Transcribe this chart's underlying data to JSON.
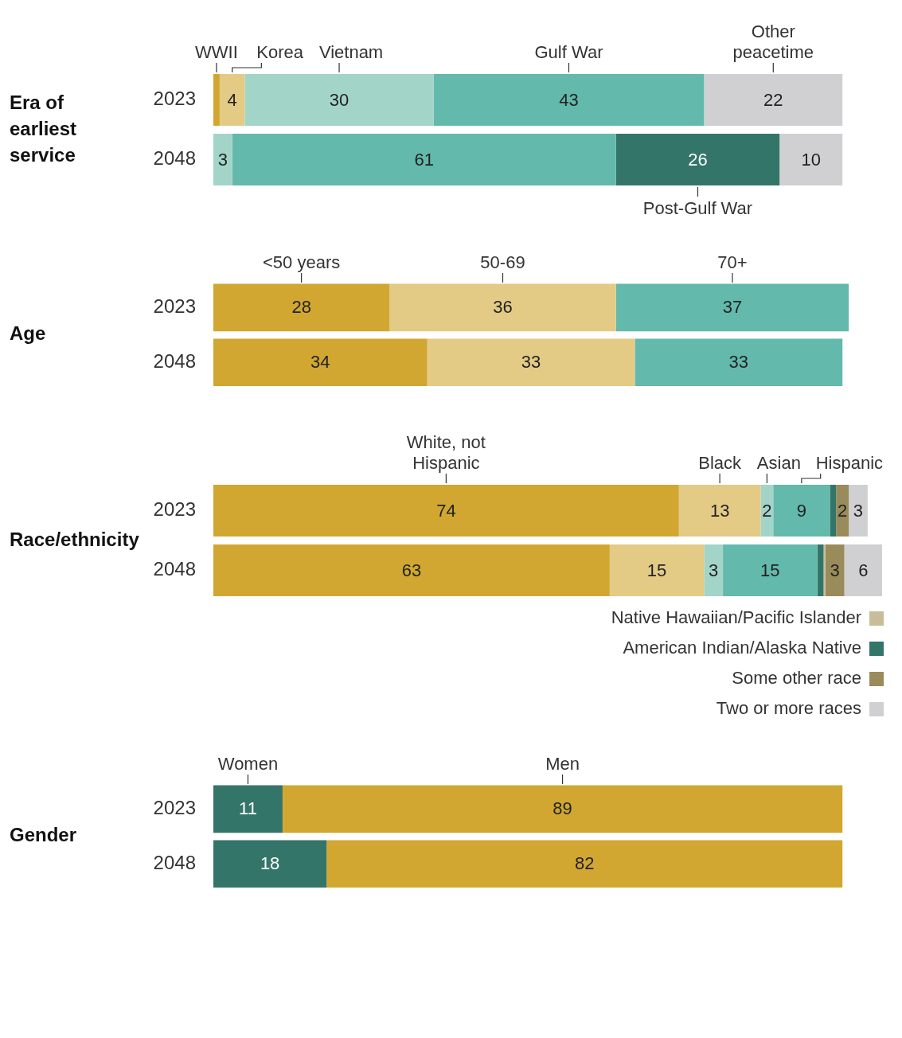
{
  "chart_data": [
    {
      "type": "bar",
      "title": "Era of earliest service",
      "orientation": "horizontal",
      "stacked": true,
      "categories": [
        "2023",
        "2048"
      ],
      "series": [
        {
          "name": "WWII",
          "color": "#d1a732",
          "values": [
            1,
            0
          ],
          "value_labels": [
            null,
            null
          ]
        },
        {
          "name": "Korea",
          "color": "#e3ca85",
          "values": [
            4,
            0
          ],
          "value_labels": [
            "4",
            null
          ]
        },
        {
          "name": "Vietnam",
          "color": "#a3d4c8",
          "values": [
            30,
            3
          ],
          "value_labels": [
            "30",
            "3"
          ]
        },
        {
          "name": "Gulf War",
          "color": "#63b9ab",
          "values": [
            43,
            61
          ],
          "value_labels": [
            "43",
            "61"
          ]
        },
        {
          "name": "Post-Gulf War",
          "color": "#347569",
          "values": [
            0,
            26
          ],
          "value_labels": [
            null,
            "26"
          ]
        },
        {
          "name": "Other peacetime",
          "color": "#d0d0d2",
          "values": [
            22,
            10
          ],
          "value_labels": [
            "22",
            "10"
          ]
        }
      ]
    },
    {
      "type": "bar",
      "title": "Age",
      "orientation": "horizontal",
      "stacked": true,
      "categories": [
        "2023",
        "2048"
      ],
      "series": [
        {
          "name": "<50 years",
          "color": "#d1a732",
          "values": [
            28,
            34
          ],
          "value_labels": [
            "28",
            "34"
          ]
        },
        {
          "name": "50-69",
          "color": "#e3ca85",
          "values": [
            36,
            33
          ],
          "value_labels": [
            "36",
            "33"
          ]
        },
        {
          "name": "70+",
          "color": "#63b9ab",
          "values": [
            37,
            33
          ],
          "value_labels": [
            "37",
            "33"
          ]
        }
      ]
    },
    {
      "type": "bar",
      "title": "Race/ethnicity",
      "orientation": "horizontal",
      "stacked": true,
      "legend": "bottom right",
      "categories": [
        "2023",
        "2048"
      ],
      "series": [
        {
          "name": "White, not Hispanic",
          "color": "#d1a732",
          "values": [
            74,
            63
          ],
          "value_labels": [
            "74",
            "63"
          ]
        },
        {
          "name": "Black",
          "color": "#e3ca85",
          "values": [
            13,
            15
          ],
          "value_labels": [
            "13",
            "15"
          ]
        },
        {
          "name": "Asian",
          "color": "#a3d4c8",
          "values": [
            2,
            3
          ],
          "value_labels": [
            "2",
            "3"
          ]
        },
        {
          "name": "Hispanic",
          "color": "#63b9ab",
          "values": [
            9,
            15
          ],
          "value_labels": [
            "9",
            "15"
          ]
        },
        {
          "name": "American Indian/Alaska Native",
          "color": "#347569",
          "values": [
            1,
            1
          ],
          "value_labels": [
            null,
            null
          ]
        },
        {
          "name": "Native Hawaiian/Pacific Islander",
          "color": "#c9bd99",
          "values": [
            0,
            0.3
          ],
          "value_labels": [
            null,
            null
          ]
        },
        {
          "name": "Some other race",
          "color": "#9a8b5a",
          "values": [
            2,
            3
          ],
          "value_labels": [
            "2",
            "3"
          ]
        },
        {
          "name": "Two or more races",
          "color": "#d0d0d2",
          "values": [
            3,
            6
          ],
          "value_labels": [
            "3",
            "6"
          ]
        }
      ]
    },
    {
      "type": "bar",
      "title": "Gender",
      "orientation": "horizontal",
      "stacked": true,
      "categories": [
        "2023",
        "2048"
      ],
      "series": [
        {
          "name": "Women",
          "color": "#347569",
          "values": [
            11,
            18
          ],
          "value_labels": [
            "11",
            "18"
          ]
        },
        {
          "name": "Men",
          "color": "#d1a732",
          "values": [
            89,
            82
          ],
          "value_labels": [
            "89",
            "82"
          ]
        }
      ]
    }
  ]
}
